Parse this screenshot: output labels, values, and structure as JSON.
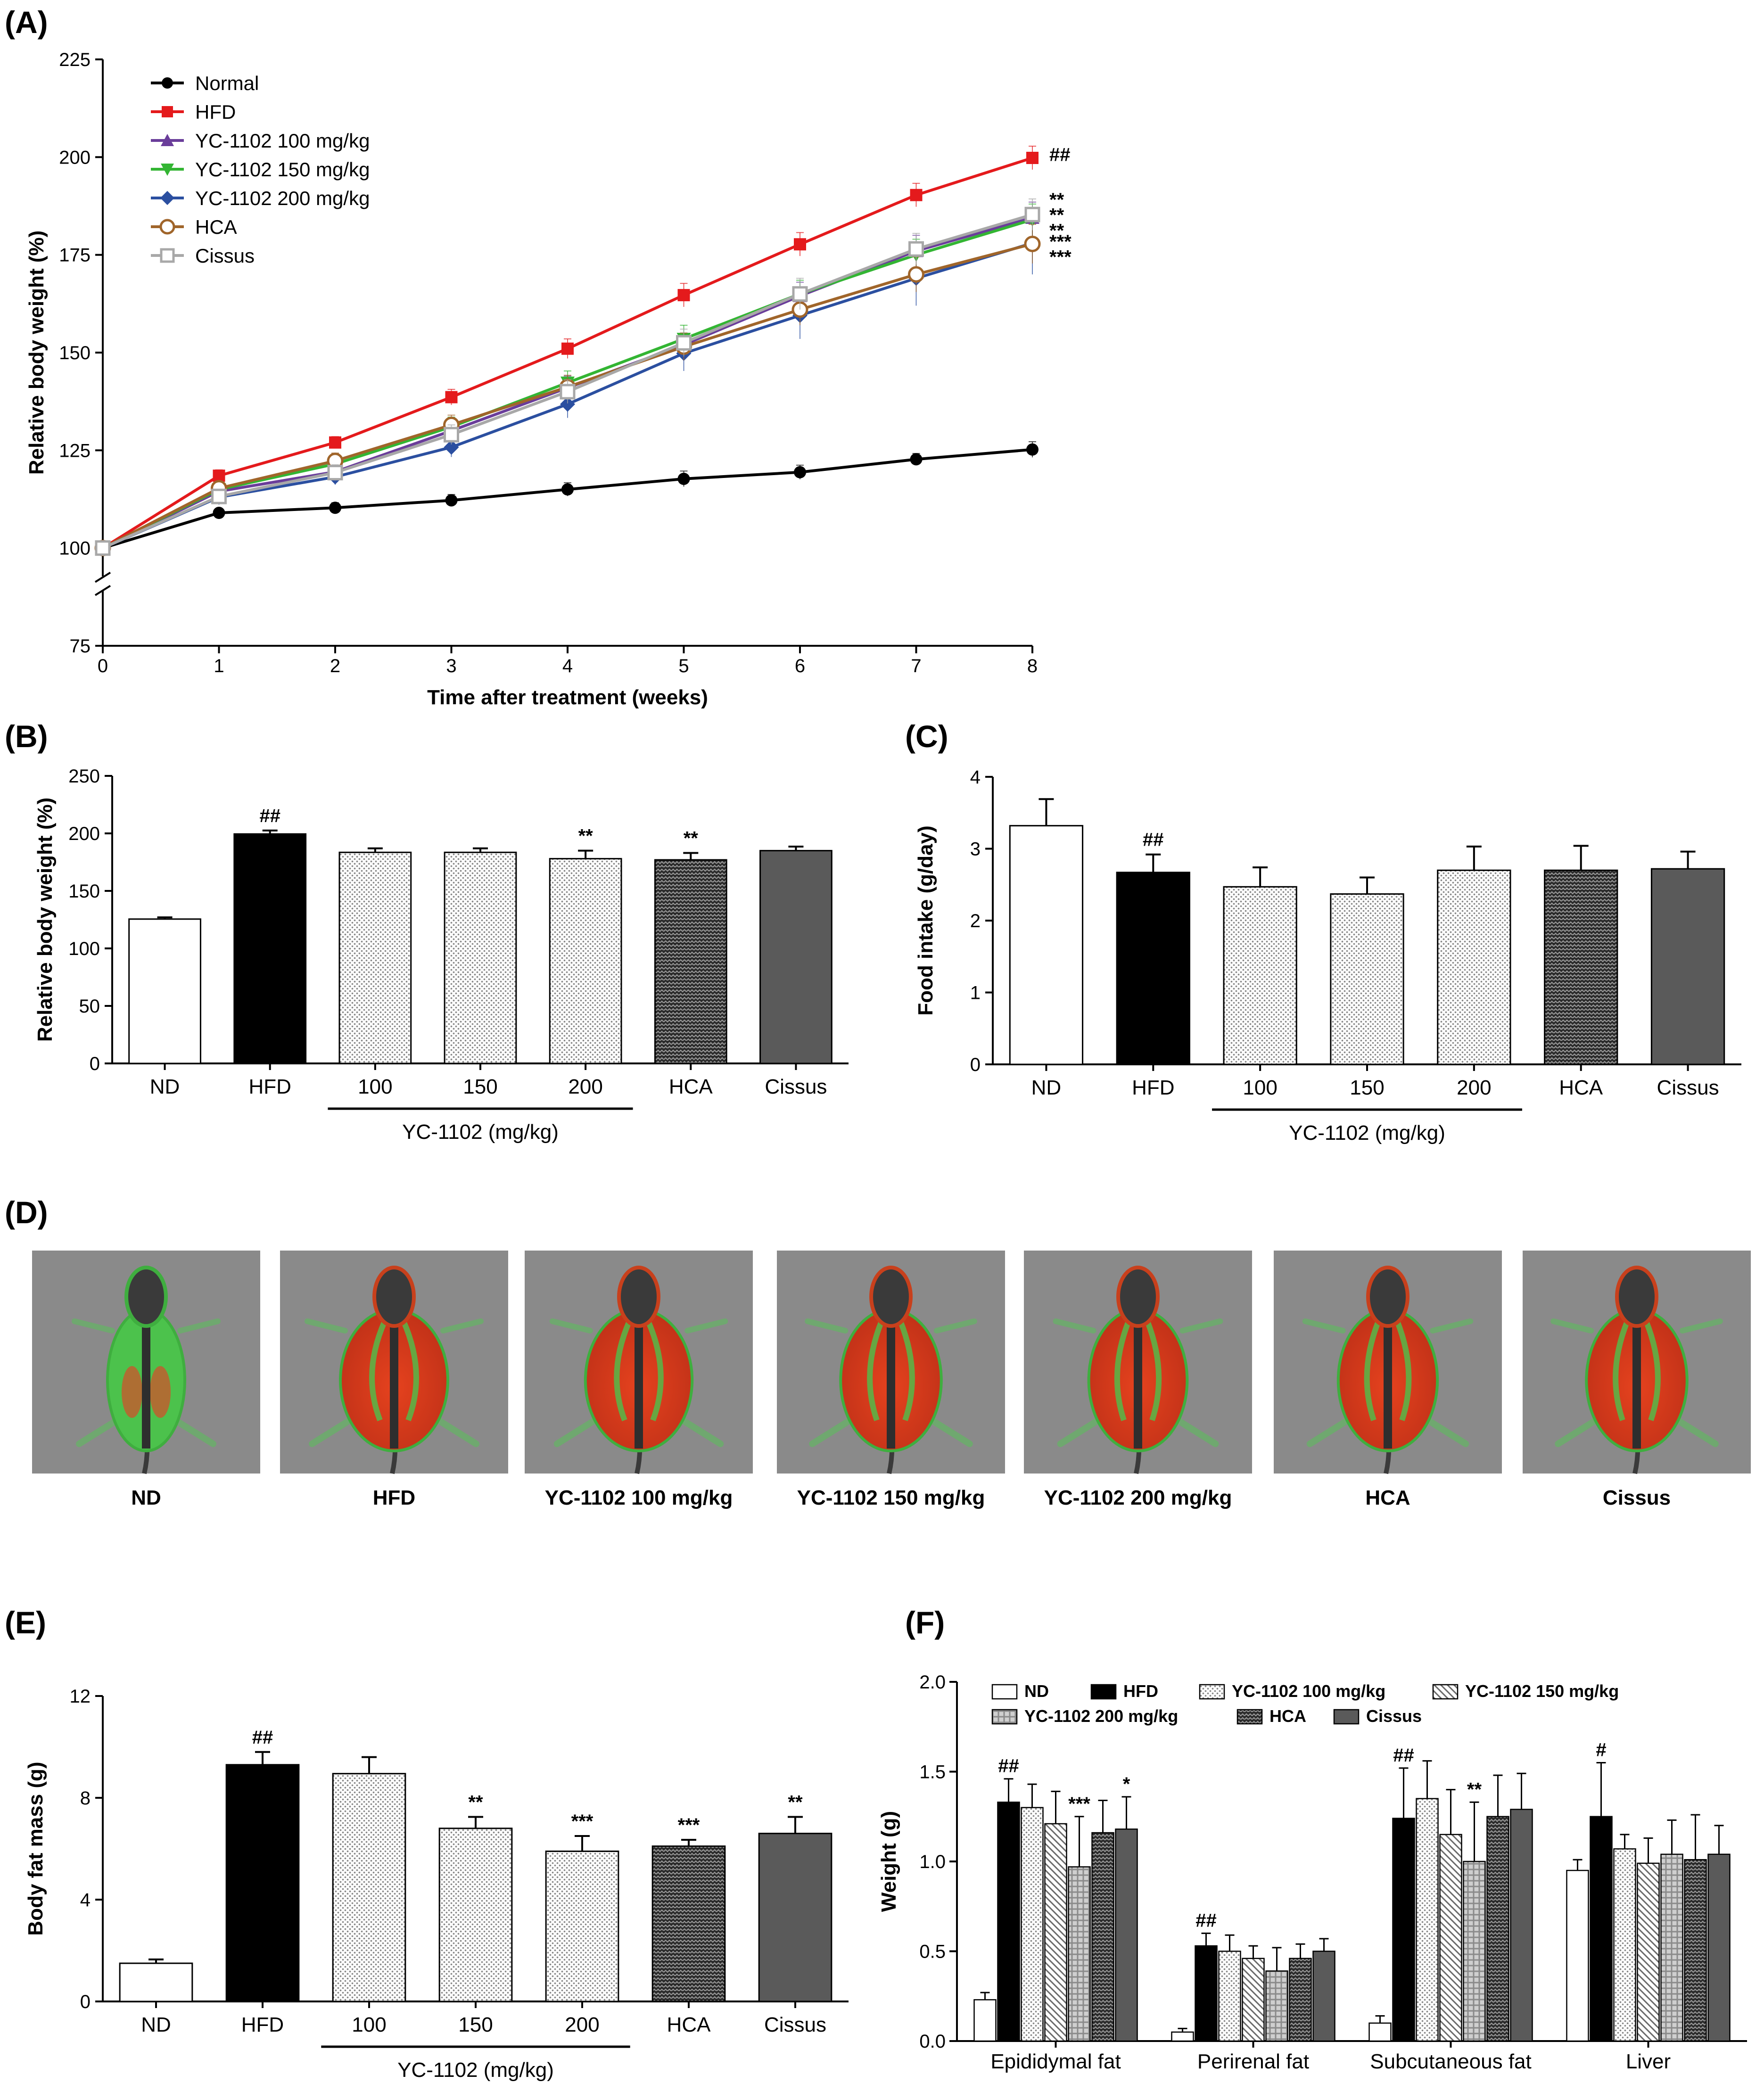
{
  "colors": {
    "normal": "#000000",
    "hfd": "#e41a1c",
    "yc100": "#6a3d9a",
    "yc150": "#33b533",
    "yc200": "#2b4fa0",
    "hca": "#a0652a",
    "cissus": "#a8a8a8",
    "img_bg": "#8a8a8a",
    "fat_red": "#d23a1a",
    "lean_green": "#4cc24c"
  },
  "panels": {
    "A": "(A)",
    "B": "(B)",
    "C": "(C)",
    "D": "(D)",
    "E": "(E)",
    "F": "(F)"
  },
  "panel_d": {
    "labels": [
      "ND",
      "HFD",
      "YC-1102 100 mg/kg",
      "YC-1102 150 mg/kg",
      "YC-1102 200 mg/kg",
      "HCA",
      "Cissus"
    ],
    "fat_level": [
      0.1,
      0.9,
      0.88,
      0.72,
      0.66,
      0.68,
      0.72
    ]
  },
  "chart_data": [
    {
      "id": "A",
      "type": "line",
      "title": "",
      "xlabel": "Time after treatment (weeks)",
      "ylabel": "Relative body weight (%)",
      "x": [
        0,
        1,
        2,
        3,
        4,
        5,
        6,
        7,
        8
      ],
      "xlim": [
        0,
        8
      ],
      "ylim": [
        75,
        225
      ],
      "yticks": [
        75,
        100,
        125,
        150,
        175,
        200,
        225
      ],
      "axis_break": true,
      "series": [
        {
          "name": "Normal",
          "marker": "circle",
          "color_key": "normal",
          "values": [
            100,
            109,
            110.3,
            112.2,
            115,
            117.7,
            119.4,
            122.7,
            125.2
          ],
          "err": [
            0,
            1,
            1.3,
            1.5,
            1.7,
            2,
            1.8,
            1.5,
            2
          ]
        },
        {
          "name": "HFD",
          "marker": "square",
          "color_key": "hfd",
          "values": [
            100,
            118.5,
            127,
            138.6,
            151,
            164.7,
            177.7,
            190.3,
            199.8
          ],
          "err": [
            0,
            1.5,
            1.5,
            2,
            2.5,
            3,
            3,
            3,
            3
          ]
        },
        {
          "name": "YC-1102 100 mg/kg",
          "marker": "triangle-up",
          "color_key": "yc100",
          "values": [
            100,
            114.5,
            119.5,
            130,
            141,
            152,
            164.5,
            176,
            184.5
          ],
          "err": [
            0,
            1.5,
            2,
            2.5,
            3,
            3,
            3.5,
            4,
            4
          ]
        },
        {
          "name": "YC-1102 150 mg/kg",
          "marker": "triangle-down",
          "color_key": "yc150",
          "values": [
            100,
            115,
            121.5,
            131,
            142.3,
            153.5,
            165,
            175,
            184
          ],
          "err": [
            0,
            1.5,
            2,
            2.5,
            3,
            3.5,
            3.5,
            4,
            4
          ]
        },
        {
          "name": "YC-1102 200 mg/kg",
          "marker": "diamond",
          "color_key": "yc200",
          "values": [
            100,
            113,
            118.2,
            125.8,
            136.8,
            149.8,
            159.5,
            169,
            178
          ],
          "err": [
            0,
            1.5,
            2,
            2.5,
            3.5,
            4.5,
            6,
            7,
            8
          ]
        },
        {
          "name": "HCA",
          "marker": "circle-open",
          "color_key": "hca",
          "values": [
            100,
            115.3,
            122.3,
            131.5,
            141.2,
            151.5,
            161,
            170,
            177.8
          ],
          "err": [
            0,
            1.5,
            2,
            2.5,
            3,
            3.5,
            4,
            4.5,
            5
          ]
        },
        {
          "name": "Cissus",
          "marker": "square-open",
          "color_key": "cissus",
          "values": [
            100,
            113.2,
            119.3,
            129,
            140,
            152.5,
            165,
            176.5,
            185.3
          ],
          "err": [
            0,
            1.5,
            2,
            2.5,
            3,
            3.5,
            4,
            4,
            4
          ]
        }
      ],
      "annotations": [
        {
          "text": "##",
          "y": 200
        },
        {
          "text": "**",
          "y": 188
        },
        {
          "text": "**",
          "y": 185
        },
        {
          "text": "**",
          "y": 182
        },
        {
          "text": "***",
          "y": 178
        },
        {
          "text": "***",
          "y": 175
        }
      ]
    },
    {
      "id": "B",
      "type": "bar",
      "xlabel": "",
      "ylabel": "Relative body weight (%)",
      "categories": [
        "ND",
        "HFD",
        "100",
        "150",
        "200",
        "HCA",
        "Cissus"
      ],
      "values": [
        125.5,
        199.5,
        183.5,
        183.5,
        178,
        177,
        185
      ],
      "err": [
        1.5,
        3,
        3.5,
        3.5,
        7,
        6,
        3.5
      ],
      "patterns": [
        "white",
        "black",
        "dots",
        "dots",
        "dots",
        "hatch",
        "dark"
      ],
      "significance": [
        "",
        "##",
        "",
        "",
        "**",
        "**",
        ""
      ],
      "ylim": [
        0,
        250
      ],
      "yticks": [
        0,
        50,
        100,
        150,
        200,
        250
      ],
      "group_label": "YC-1102 (mg/kg)",
      "group_span": [
        2,
        4
      ]
    },
    {
      "id": "C",
      "type": "bar",
      "xlabel": "",
      "ylabel": "Food intake (g/day)",
      "categories": [
        "ND",
        "HFD",
        "100",
        "150",
        "200",
        "HCA",
        "Cissus"
      ],
      "values": [
        3.32,
        2.67,
        2.47,
        2.37,
        2.7,
        2.7,
        2.72
      ],
      "err": [
        0.37,
        0.25,
        0.27,
        0.23,
        0.33,
        0.34,
        0.24
      ],
      "patterns": [
        "white",
        "black",
        "dots",
        "dots",
        "dots",
        "hatch",
        "dark"
      ],
      "significance": [
        "",
        "##",
        "",
        "",
        "",
        "",
        ""
      ],
      "ylim": [
        0,
        4
      ],
      "yticks": [
        0,
        1,
        2,
        3,
        4
      ],
      "group_label": "YC-1102 (mg/kg)",
      "group_span": [
        2,
        4
      ]
    },
    {
      "id": "E",
      "type": "bar",
      "xlabel": "",
      "ylabel": "Body fat mass (g)",
      "categories": [
        "ND",
        "HFD",
        "100",
        "150",
        "200",
        "HCA",
        "Cissus"
      ],
      "values": [
        1.5,
        9.3,
        8.95,
        6.8,
        5.9,
        6.1,
        6.6
      ],
      "err": [
        0.15,
        0.5,
        0.65,
        0.45,
        0.6,
        0.25,
        0.65
      ],
      "patterns": [
        "white",
        "black",
        "dots",
        "dots",
        "dots",
        "hatch",
        "dark"
      ],
      "significance": [
        "",
        "##",
        "",
        "**",
        "***",
        "***",
        "**"
      ],
      "ylim": [
        0,
        12
      ],
      "yticks": [
        0,
        4,
        8,
        12
      ],
      "group_label": "YC-1102 (mg/kg)",
      "group_span": [
        2,
        4
      ]
    },
    {
      "id": "F",
      "type": "bar",
      "xlabel": "",
      "ylabel": "Weight (g)",
      "categories": [
        "Epididymal fat",
        "Perirenal fat",
        "Subcutaneous fat",
        "Liver"
      ],
      "ylim": [
        0,
        2
      ],
      "yticks": [
        0.0,
        0.5,
        1.0,
        1.5,
        2.0
      ],
      "yticklabels": [
        "0.0",
        "0.5",
        "1.0",
        "1.5",
        "2.0"
      ],
      "series": [
        {
          "name": "ND",
          "pattern": "white",
          "values": [
            0.23,
            0.05,
            0.1,
            0.95
          ],
          "err": [
            0.04,
            0.02,
            0.04,
            0.06
          ],
          "sig": [
            "",
            "",
            "",
            ""
          ]
        },
        {
          "name": "HFD",
          "pattern": "black",
          "values": [
            1.33,
            0.53,
            1.24,
            1.25
          ],
          "err": [
            0.13,
            0.07,
            0.28,
            0.3
          ],
          "sig": [
            "##",
            "##",
            "##",
            "#"
          ]
        },
        {
          "name": "YC-1102 100 mg/kg",
          "pattern": "dots",
          "values": [
            1.3,
            0.5,
            1.35,
            1.07
          ],
          "err": [
            0.13,
            0.09,
            0.21,
            0.08
          ],
          "sig": [
            "",
            "",
            "",
            ""
          ]
        },
        {
          "name": "YC-1102 150 mg/kg",
          "pattern": "diag",
          "values": [
            1.21,
            0.46,
            1.15,
            0.99
          ],
          "err": [
            0.18,
            0.07,
            0.25,
            0.14
          ],
          "sig": [
            "",
            "",
            "",
            ""
          ]
        },
        {
          "name": "YC-1102 200 mg/kg",
          "pattern": "grid",
          "values": [
            0.97,
            0.39,
            1.0,
            1.04
          ],
          "err": [
            0.28,
            0.13,
            0.33,
            0.19
          ],
          "sig": [
            "***",
            "",
            "**",
            ""
          ]
        },
        {
          "name": "HCA",
          "pattern": "hatch",
          "values": [
            1.16,
            0.46,
            1.25,
            1.01
          ],
          "err": [
            0.18,
            0.08,
            0.23,
            0.25
          ],
          "sig": [
            "",
            "",
            "",
            ""
          ]
        },
        {
          "name": "Cissus",
          "pattern": "dark",
          "values": [
            1.18,
            0.5,
            1.29,
            1.04
          ],
          "err": [
            0.18,
            0.07,
            0.2,
            0.16
          ],
          "sig": [
            "*",
            "",
            "",
            ""
          ]
        }
      ]
    }
  ]
}
